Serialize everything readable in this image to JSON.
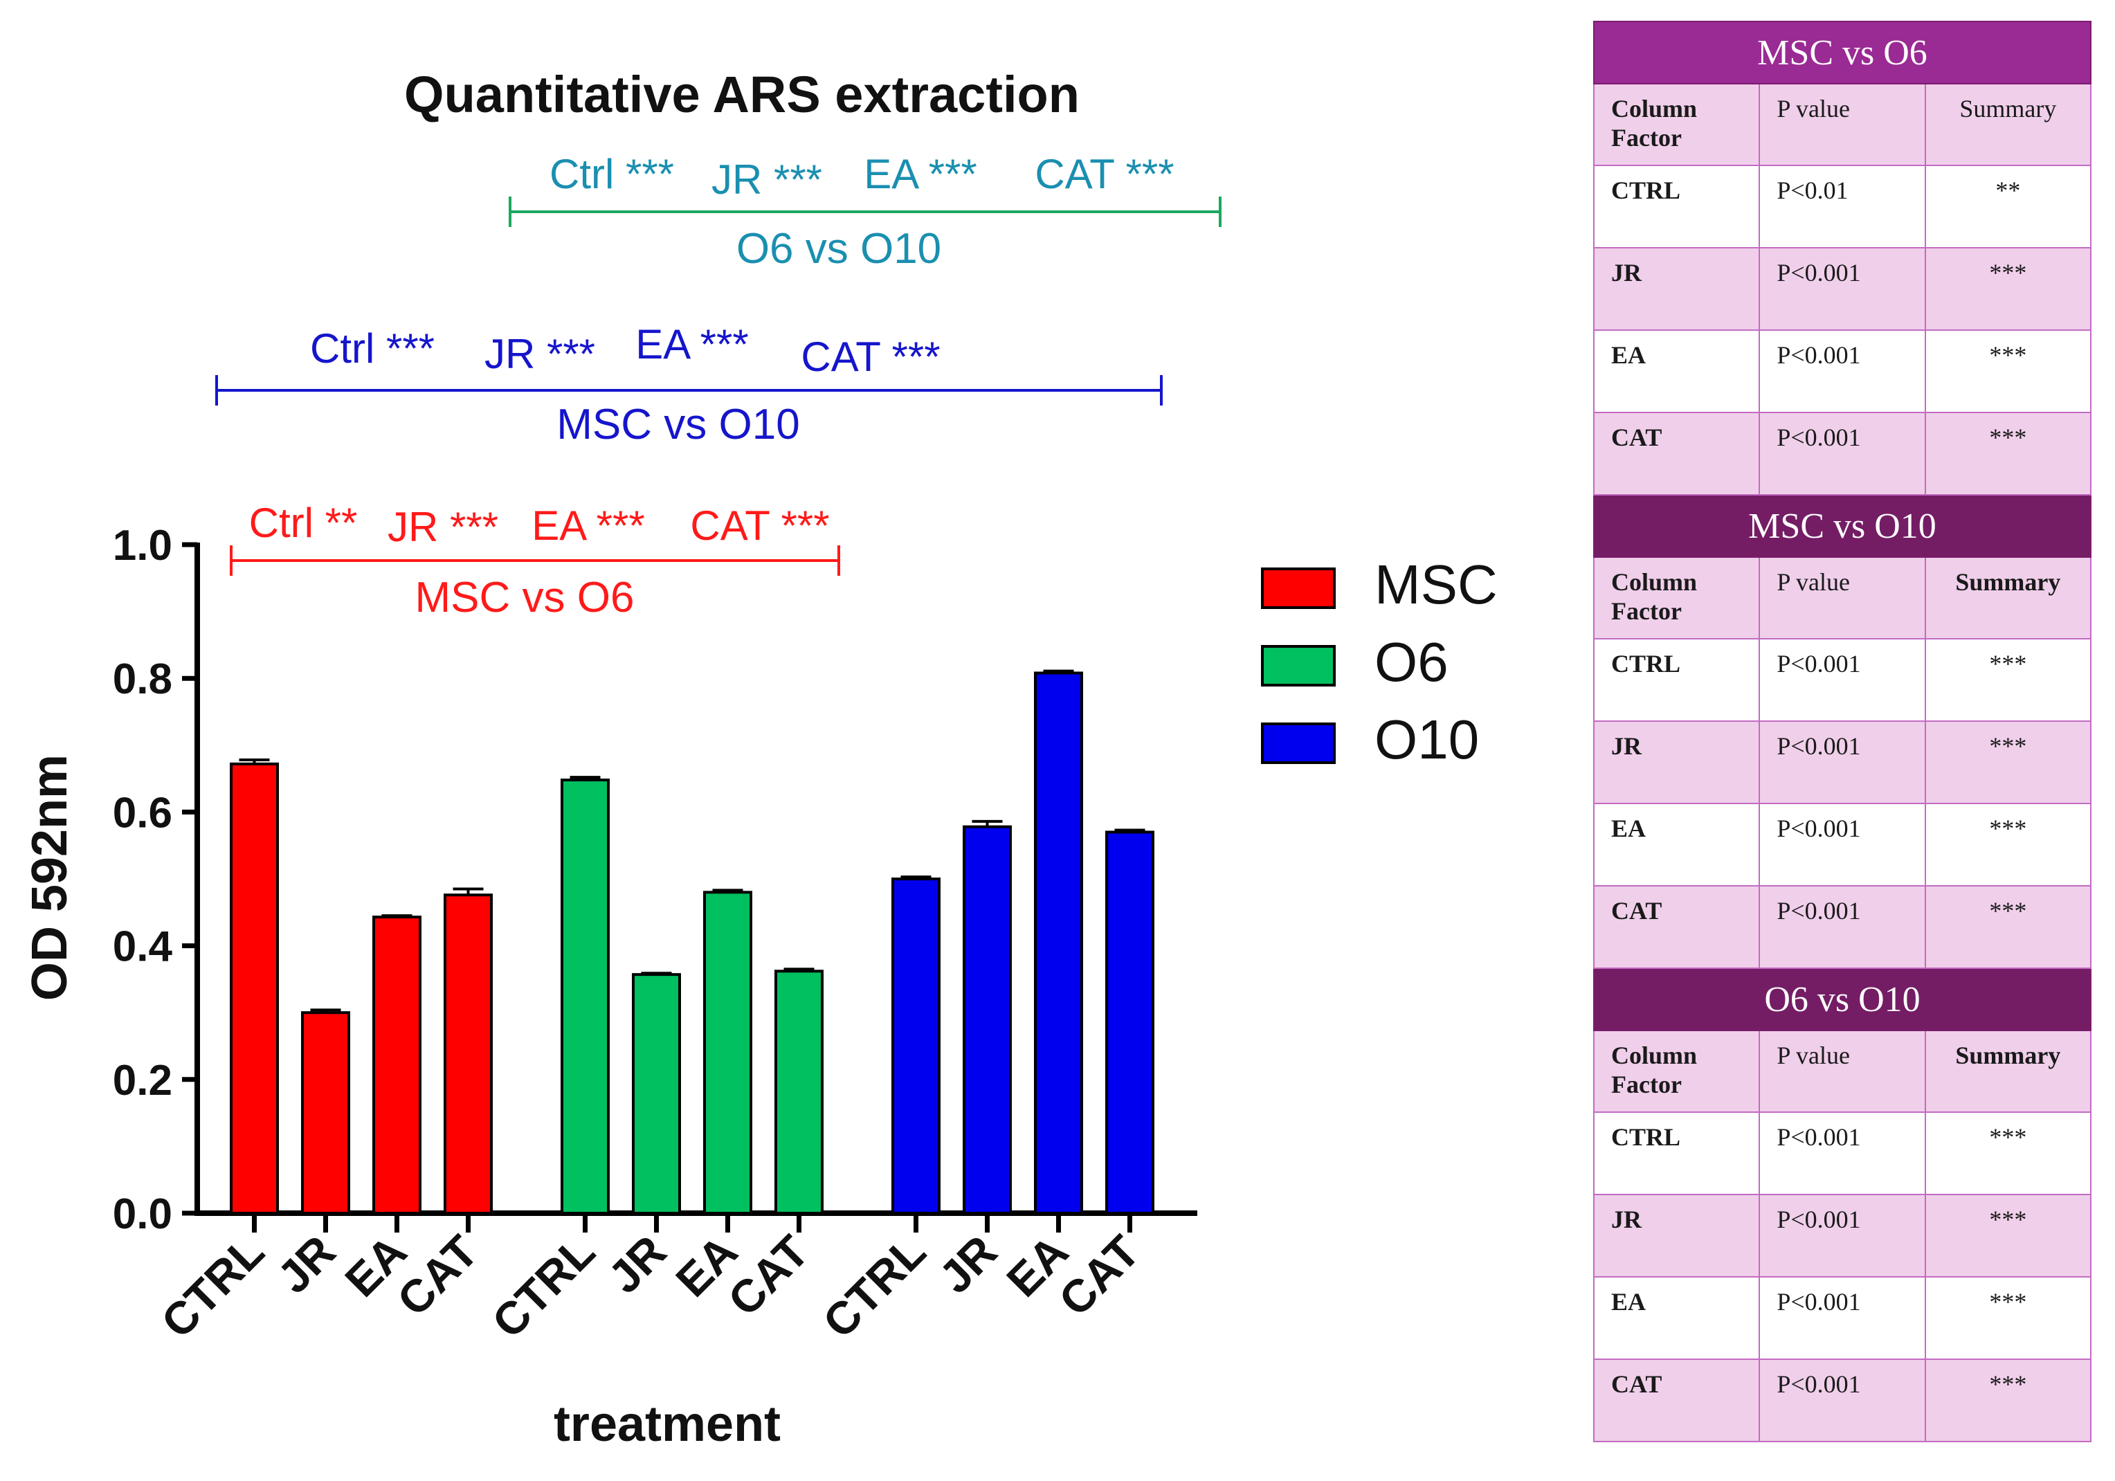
{
  "chart_data": {
    "type": "bar",
    "title": "Quantitative ARS extraction",
    "xlabel": "treatment",
    "ylabel": "OD 592nm",
    "ylim": [
      0,
      1.0
    ],
    "yticks": [
      "0.0",
      "0.2",
      "0.4",
      "0.6",
      "0.8",
      "1.0"
    ],
    "categories": [
      "CTRL",
      "JR",
      "EA",
      "CAT"
    ],
    "series": [
      {
        "name": "MSC",
        "color": "#ff0000",
        "values": [
          0.672,
          0.3,
          0.443,
          0.476
        ],
        "errors": [
          0.006,
          0.004,
          0.002,
          0.009
        ]
      },
      {
        "name": "O6",
        "color": "#00c060",
        "values": [
          0.648,
          0.357,
          0.48,
          0.362
        ],
        "errors": [
          0.004,
          0.002,
          0.003,
          0.003
        ]
      },
      {
        "name": "O10",
        "color": "#0000ee",
        "values": [
          0.5,
          0.578,
          0.808,
          0.57
        ],
        "errors": [
          0.003,
          0.008,
          0.003,
          0.003
        ]
      }
    ],
    "legend_position": "right",
    "comparisons": [
      {
        "label": "O6 vs O10",
        "color": "#1a8fb0",
        "bar_color": "#1aa860",
        "annotations": [
          "Ctrl ***",
          "JR ***",
          "EA ***",
          "CAT ***"
        ]
      },
      {
        "label": "MSC vs O10",
        "color": "#1515cc",
        "bar_color": "#1515cc",
        "annotations": [
          "Ctrl ***",
          "JR ***",
          "EA ***",
          "CAT ***"
        ]
      },
      {
        "label": "MSC vs O6",
        "color": "#ff1a1a",
        "bar_color": "#ff1a1a",
        "annotations": [
          "Ctrl **",
          "JR ***",
          "EA ***",
          "CAT ***"
        ]
      }
    ]
  },
  "stats_table": {
    "headers": {
      "factor": "Column Factor",
      "p": "P value",
      "summary": "Summary"
    },
    "blocks": [
      {
        "title": "MSC vs O6",
        "rows": [
          {
            "factor": "CTRL",
            "p": "P<0.01",
            "summary": "**"
          },
          {
            "factor": "JR",
            "p": "P<0.001",
            "summary": "***"
          },
          {
            "factor": "EA",
            "p": "P<0.001",
            "summary": "***"
          },
          {
            "factor": "CAT",
            "p": "P<0.001",
            "summary": "***"
          }
        ]
      },
      {
        "title": "MSC vs O10",
        "rows": [
          {
            "factor": "CTRL",
            "p": "P<0.001",
            "summary": "***"
          },
          {
            "factor": "JR",
            "p": "P<0.001",
            "summary": "***"
          },
          {
            "factor": "EA",
            "p": "P<0.001",
            "summary": "***"
          },
          {
            "factor": "CAT",
            "p": "P<0.001",
            "summary": "***"
          }
        ]
      },
      {
        "title": "O6 vs O10",
        "rows": [
          {
            "factor": "CTRL",
            "p": "P<0.001",
            "summary": "***"
          },
          {
            "factor": "JR",
            "p": "P<0.001",
            "summary": "***"
          },
          {
            "factor": "EA",
            "p": "P<0.001",
            "summary": "***"
          },
          {
            "factor": "CAT",
            "p": "P<0.001",
            "summary": "***"
          }
        ]
      }
    ]
  }
}
